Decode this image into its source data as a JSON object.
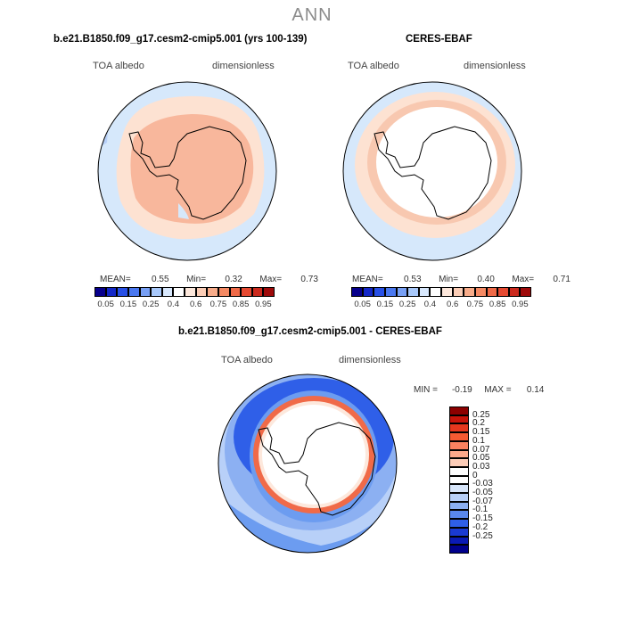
{
  "season": "ANN",
  "colors": {
    "ocean_light": "#d6e8fb",
    "albedo_mid": "#fde2d2",
    "albedo_high": "#f8b79c",
    "albedo_top": "#f4a080",
    "diff_blue_dark": "#2f5fe8",
    "diff_blue_mid": "#6c9cf0",
    "diff_red": "#f06a48"
  },
  "panels": {
    "left": {
      "title": "b.e21.B1850.f09_g17.cesm2-cmip5.001 (yrs 100-139)",
      "variable": "TOA albedo",
      "units": "dimensionless",
      "stats": {
        "mean_label": "MEAN=",
        "mean": "0.55",
        "min_label": "Min=",
        "min": "0.32",
        "max_label": "Max=",
        "max": "0.73"
      }
    },
    "right": {
      "title": "CERES-EBAF",
      "variable": "TOA albedo",
      "units": "dimensionless",
      "stats": {
        "mean_label": "MEAN=",
        "mean": "0.53",
        "min_label": "Min=",
        "min": "0.40",
        "max_label": "Max=",
        "max": "0.71"
      }
    },
    "diff": {
      "title": "b.e21.B1850.f09_g17.cesm2-cmip5.001 - CERES-EBAF",
      "variable": "TOA albedo",
      "units": "dimensionless",
      "stats": {
        "min_label": "MIN =",
        "min": "-0.19",
        "max_label": "MAX =",
        "max": "0.14"
      }
    }
  },
  "colorbar_top": {
    "colors": [
      "#08008c",
      "#1428c8",
      "#2850e6",
      "#4a78f0",
      "#78a0f5",
      "#a8c8fa",
      "#d8e8fd",
      "#ffffff",
      "#fde8dc",
      "#fbcdb6",
      "#f8ac8a",
      "#f58a64",
      "#f06a48",
      "#e64a32",
      "#cc2a1e",
      "#9e0a0a"
    ],
    "labels": [
      "0.05",
      "0.15",
      "0.25",
      "0.4",
      "0.6",
      "0.75",
      "0.85",
      "0.95"
    ]
  },
  "colorbar_diff": {
    "colors": [
      "#8c0000",
      "#c8140a",
      "#e6381e",
      "#f55a32",
      "#fa8260",
      "#fca88a",
      "#fdcdb8",
      "#ffffff",
      "#ffffff",
      "#d8e6fa",
      "#b8d0f8",
      "#8cb0f2",
      "#5a88ec",
      "#2f5fe8",
      "#1a3ad2",
      "#0a1ab4",
      "#00008c"
    ],
    "labels": [
      "0.25",
      "0.2",
      "0.15",
      "0.1",
      "0.07",
      "0.05",
      "0.03",
      "0",
      "-0.03",
      "-0.05",
      "-0.07",
      "-0.1",
      "-0.15",
      "-0.2",
      "-0.25"
    ]
  }
}
